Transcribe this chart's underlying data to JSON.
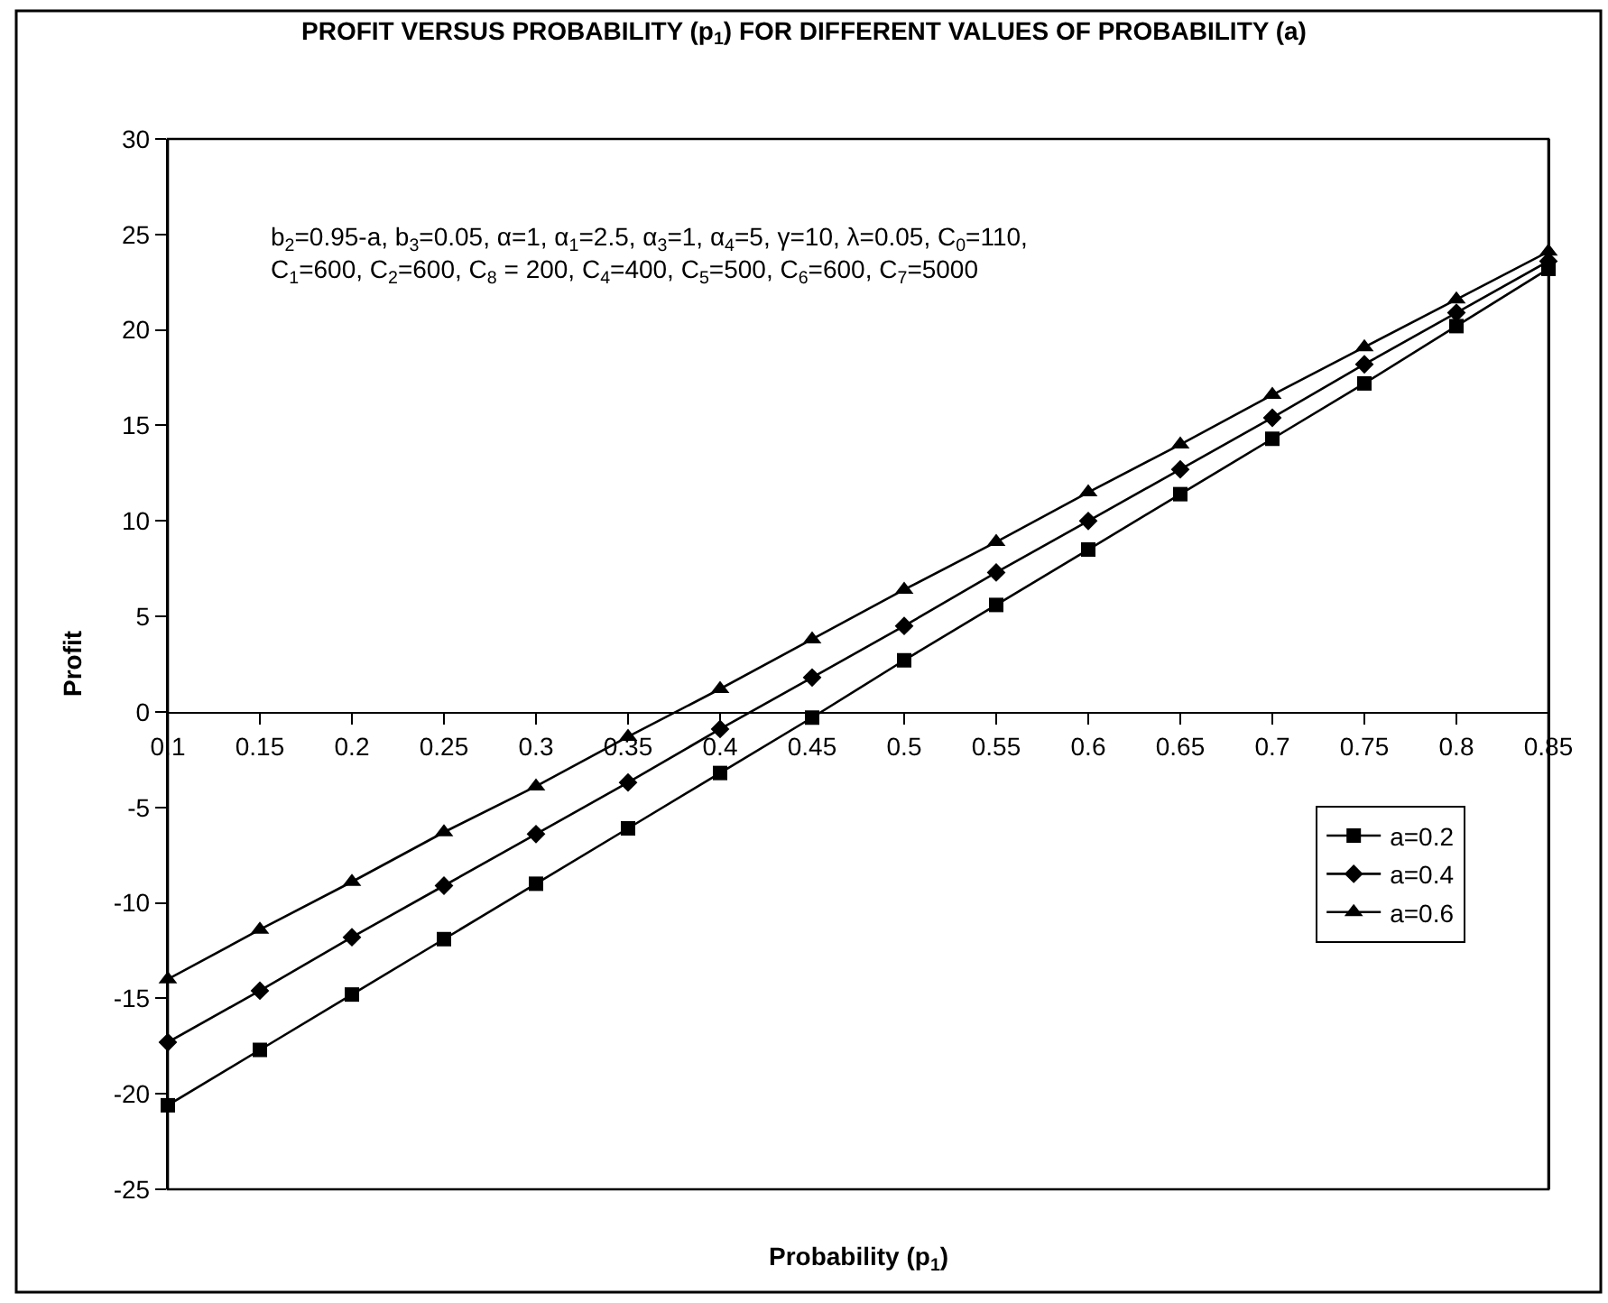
{
  "chart_data": {
    "type": "line",
    "title": "PROFIT VERSUS PROBABILITY (p$_{1}$) FOR DIFFERENT VALUES OF PROBABILITY (a)",
    "xlabel": "Probability (p$_{1}$)",
    "ylabel": "Profit",
    "x": [
      0.1,
      0.15,
      0.2,
      0.25,
      0.3,
      0.35,
      0.4,
      0.45,
      0.5,
      0.55,
      0.6,
      0.65,
      0.7,
      0.75,
      0.8,
      0.85
    ],
    "series": [
      {
        "name": "a=0.2",
        "color": "#000000",
        "marker": "square",
        "values": [
          -20.6,
          -17.7,
          -14.8,
          -11.9,
          -9.0,
          -6.1,
          -3.2,
          -0.3,
          2.7,
          5.6,
          8.5,
          11.4,
          14.3,
          17.2,
          20.2,
          23.2
        ]
      },
      {
        "name": "a=0.4",
        "color": "#000000",
        "marker": "diamond",
        "values": [
          -17.3,
          -14.6,
          -11.8,
          -9.1,
          -6.4,
          -3.7,
          -0.9,
          1.8,
          4.5,
          7.3,
          10.0,
          12.7,
          15.4,
          18.2,
          20.9,
          23.6
        ]
      },
      {
        "name": "a=0.6",
        "color": "#000000",
        "marker": "triangle",
        "values": [
          -14.0,
          -11.4,
          -8.9,
          -6.3,
          -3.9,
          -1.3,
          1.2,
          3.8,
          6.4,
          8.9,
          11.5,
          14.0,
          16.6,
          19.1,
          21.6,
          24.1
        ]
      }
    ],
    "xlim": [
      0.1,
      0.85
    ],
    "xticks": [
      0.1,
      0.15,
      0.2,
      0.25,
      0.3,
      0.35,
      0.4,
      0.45,
      0.5,
      0.55,
      0.6,
      0.65,
      0.7,
      0.75,
      0.8,
      0.85
    ],
    "ylim": [
      -25,
      30
    ],
    "yticks": [
      -25,
      -20,
      -15,
      -10,
      -5,
      0,
      5,
      10,
      15,
      20,
      25,
      30
    ],
    "grid": false,
    "legend": "right",
    "line_style": "solid",
    "annotations": [
      "b$_{2}$=0.95-a, b$_{3}$=0.05, α=1, α$_{1}$=2.5, α$_{3}$=1, α$_{4}$=5, γ=10, λ=0.05, C$_{0}$=110,\nC$_{1}$=600, C$_{2}$=600, C$_{8}$ = 200, C$_{4}$=400, C$_{5}$=500, C$_{6}$=600, C$_{7}$=5000"
    ]
  }
}
